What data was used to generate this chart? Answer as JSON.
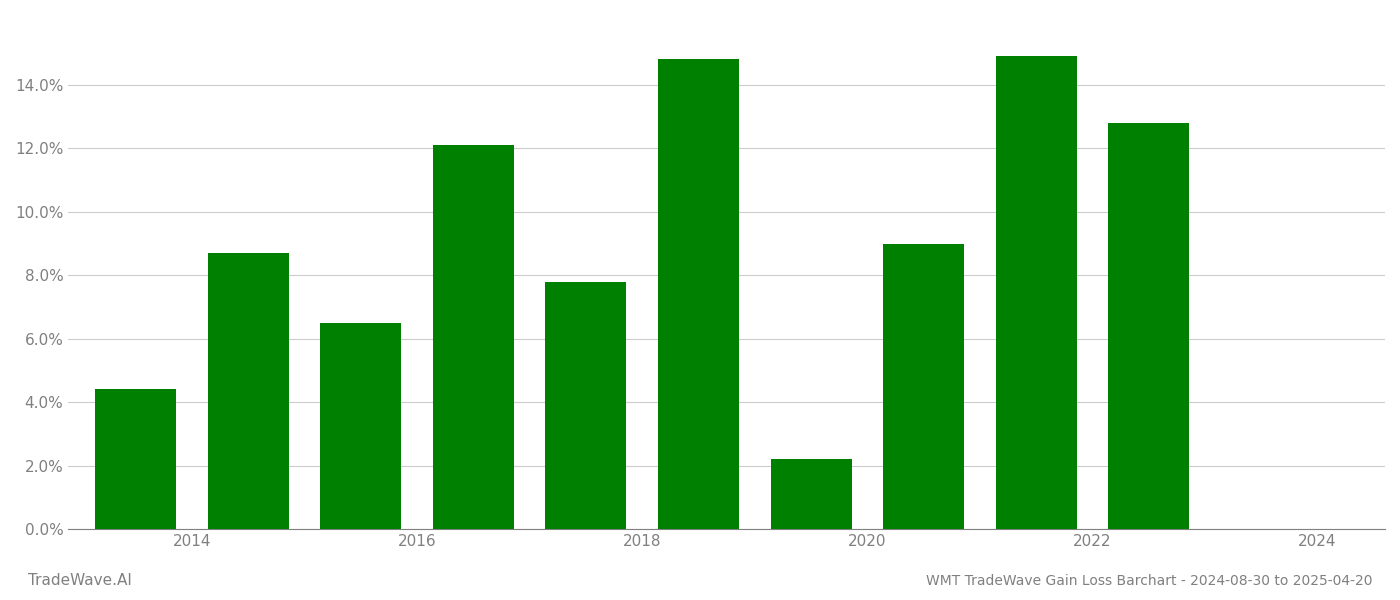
{
  "years": [
    2014,
    2015,
    2016,
    2017,
    2018,
    2019,
    2020,
    2021,
    2022,
    2023,
    2024
  ],
  "values": [
    0.044,
    0.087,
    0.065,
    0.121,
    0.078,
    0.148,
    0.022,
    0.09,
    0.149,
    0.128,
    null
  ],
  "bar_color": "#008000",
  "background_color": "#ffffff",
  "title": "WMT TradeWave Gain Loss Barchart - 2024-08-30 to 2025-04-20",
  "watermark": "TradeWave.AI",
  "grid_color": "#cccccc",
  "axis_label_color": "#808080",
  "ylim_min": 0.0,
  "ylim_max": 0.162,
  "ytick_values": [
    0.0,
    0.02,
    0.04,
    0.06,
    0.08,
    0.1,
    0.12,
    0.14
  ],
  "xtick_labels": [
    "2014",
    "2016",
    "2018",
    "2020",
    "2022",
    "2024"
  ],
  "xtick_positions": [
    2014.5,
    2016.5,
    2018.5,
    2020.5,
    2022.5,
    2024.5
  ],
  "xlim_min": 2013.4,
  "xlim_max": 2025.1,
  "bar_width": 0.72,
  "figsize": [
    14.0,
    6.0
  ],
  "dpi": 100
}
